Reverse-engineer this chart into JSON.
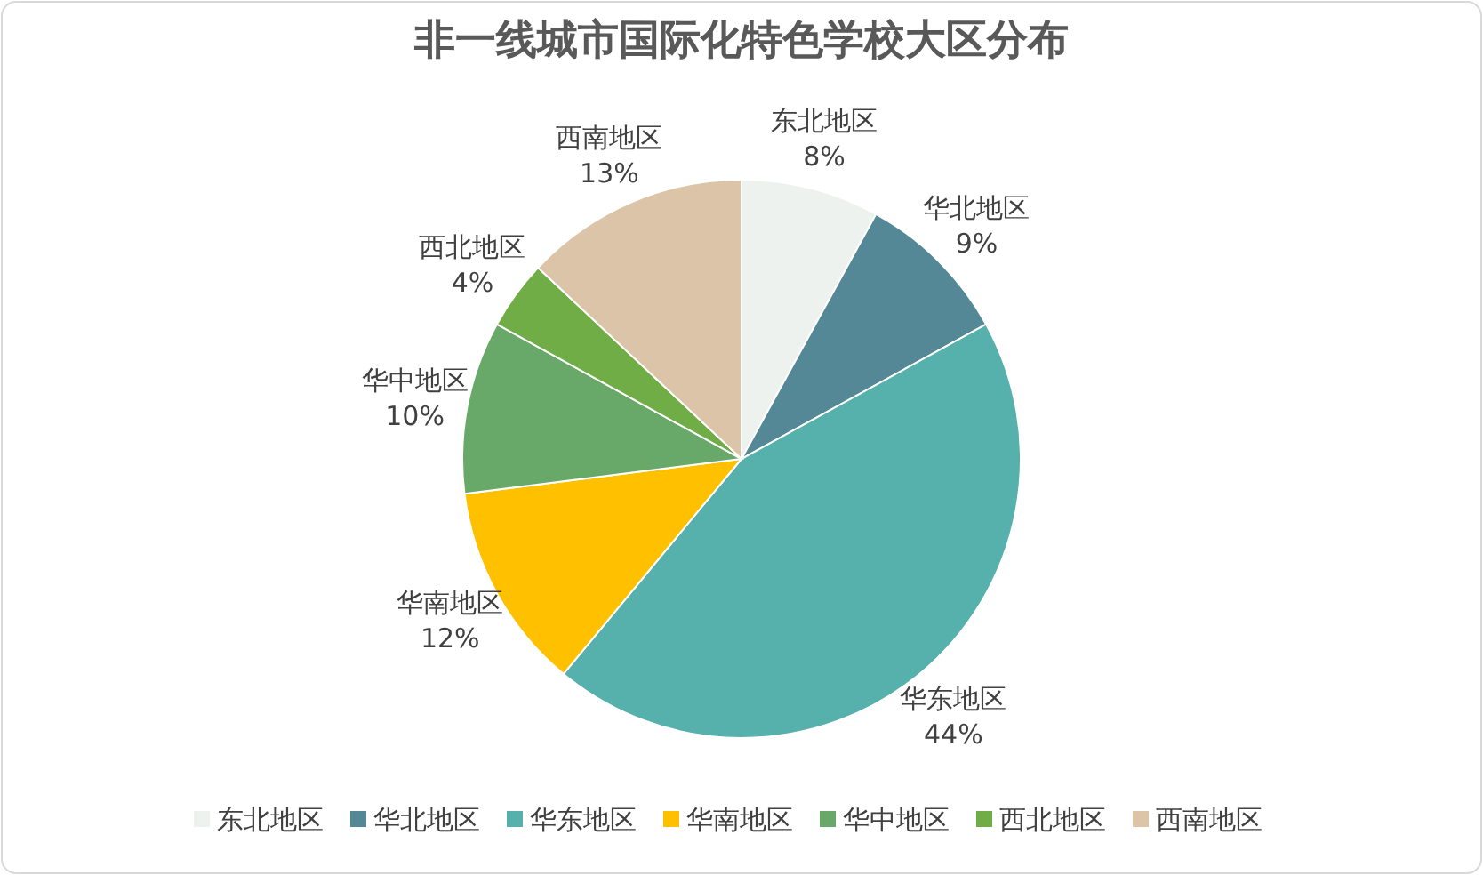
{
  "chart_data": {
    "type": "pie",
    "title": "非一线城市国际化特色学校大区分布",
    "categories": [
      "东北地区",
      "华北地区",
      "华东地区",
      "华南地区",
      "华中地区",
      "西北地区",
      "西南地区"
    ],
    "values": [
      8,
      9,
      44,
      12,
      10,
      4,
      13
    ],
    "value_labels": [
      "8%",
      "9%",
      "44%",
      "12%",
      "10%",
      "4%",
      "13%"
    ],
    "colors": [
      "#eef2ee",
      "#548896",
      "#56b0ab",
      "#ffc000",
      "#68a96a",
      "#70ad47",
      "#dcc4a8"
    ],
    "legend": "bottom"
  }
}
